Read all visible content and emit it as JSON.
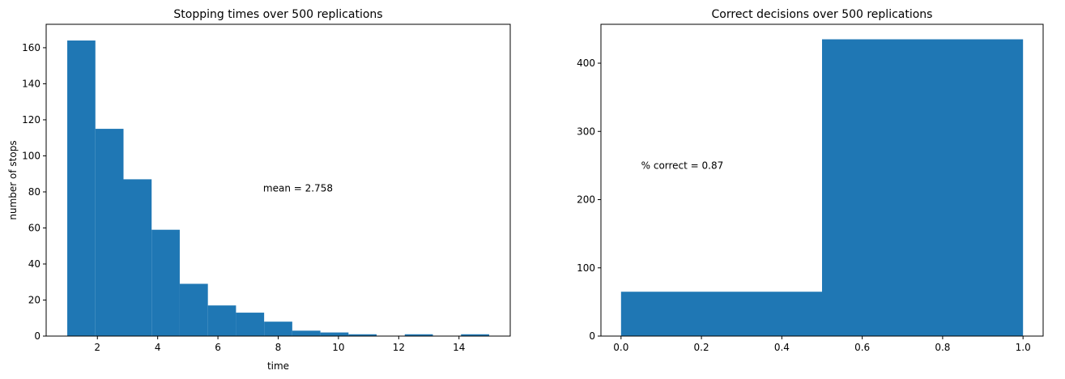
{
  "chart_data": [
    {
      "type": "bar",
      "title": "Stopping times over 500 replications",
      "xlabel": "time",
      "ylabel": "number of stops",
      "bin_edges": [
        1,
        1.9333,
        2.8667,
        3.8,
        4.7333,
        5.6667,
        6.6,
        7.5333,
        8.4667,
        9.4,
        10.3333,
        11.2667,
        12.2,
        13.1333,
        14.0667,
        15
      ],
      "values": [
        164,
        115,
        87,
        59,
        29,
        17,
        13,
        8,
        3,
        2,
        1,
        0,
        1,
        0,
        1
      ],
      "xlim": [
        0.3,
        15.7
      ],
      "ylim": [
        0,
        173
      ],
      "xticks": [
        2,
        4,
        6,
        8,
        10,
        12,
        14
      ],
      "yticks": [
        0,
        20,
        40,
        60,
        80,
        100,
        120,
        140,
        160
      ],
      "annotation": {
        "text": "mean = 2.758",
        "x": 7.5,
        "y": 82
      },
      "color": "#1f77b4",
      "grid": false
    },
    {
      "type": "bar",
      "title": "Correct decisions over 500 replications",
      "xlabel": "",
      "ylabel": "",
      "bin_edges": [
        0,
        0.5,
        1
      ],
      "values": [
        65,
        435
      ],
      "xlim": [
        -0.05,
        1.05
      ],
      "ylim": [
        0,
        457
      ],
      "xticks": [
        0.0,
        0.2,
        0.4,
        0.6,
        0.8,
        1.0
      ],
      "xtick_labels": [
        "0.0",
        "0.2",
        "0.4",
        "0.6",
        "0.8",
        "1.0"
      ],
      "yticks": [
        0,
        100,
        200,
        300,
        400
      ],
      "annotation": {
        "text": "% correct = 0.87",
        "x": 0.05,
        "y": 250
      },
      "color": "#1f77b4",
      "grid": false
    }
  ]
}
